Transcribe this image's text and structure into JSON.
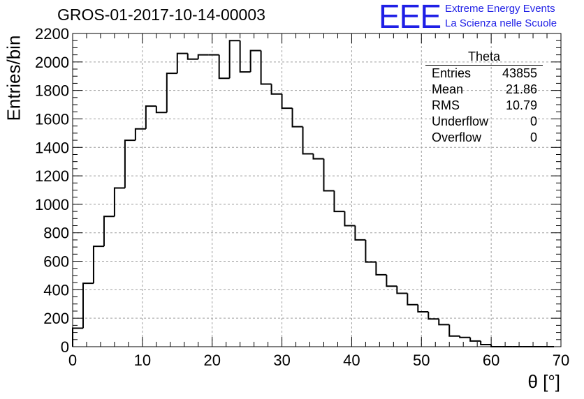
{
  "header": {
    "title": "GROS-01-2017-10-14-00003",
    "logo_mark": "EEE",
    "logo_line1": "Extreme Energy Events",
    "logo_line2": "La Scienza nelle Scuole"
  },
  "stats_box": {
    "title": "Theta",
    "rows": [
      {
        "label": "Entries",
        "value": "43855"
      },
      {
        "label": "Mean",
        "value": "21.86"
      },
      {
        "label": "RMS",
        "value": "10.79"
      },
      {
        "label": "Underflow",
        "value": "0"
      },
      {
        "label": "Overflow",
        "value": "0"
      }
    ]
  },
  "colors": {
    "line": "#000000",
    "grid": "#9e9e9e",
    "logo": "#1f1fe6"
  },
  "chart_data": {
    "type": "bar",
    "subtype": "histogram-step",
    "title": "GROS-01-2017-10-14-00003",
    "xlabel": "θ [°]",
    "ylabel": "Entries/bin",
    "xlim": [
      0,
      70
    ],
    "ylim": [
      0,
      2200
    ],
    "bin_width": 1.5,
    "x_start": 0,
    "grid": true,
    "xticks": [
      0,
      10,
      20,
      30,
      40,
      50,
      60,
      70
    ],
    "yticks": [
      0,
      200,
      400,
      600,
      800,
      1000,
      1200,
      1400,
      1600,
      1800,
      2000,
      2200
    ],
    "values": [
      130,
      445,
      705,
      915,
      1115,
      1450,
      1530,
      1690,
      1645,
      1920,
      2060,
      2020,
      2050,
      2050,
      1885,
      2150,
      1930,
      2080,
      1845,
      1775,
      1675,
      1545,
      1355,
      1320,
      1095,
      950,
      850,
      750,
      595,
      505,
      425,
      375,
      295,
      245,
      195,
      155,
      75,
      65,
      40,
      15,
      0,
      0,
      0,
      0,
      0,
      0
    ]
  }
}
